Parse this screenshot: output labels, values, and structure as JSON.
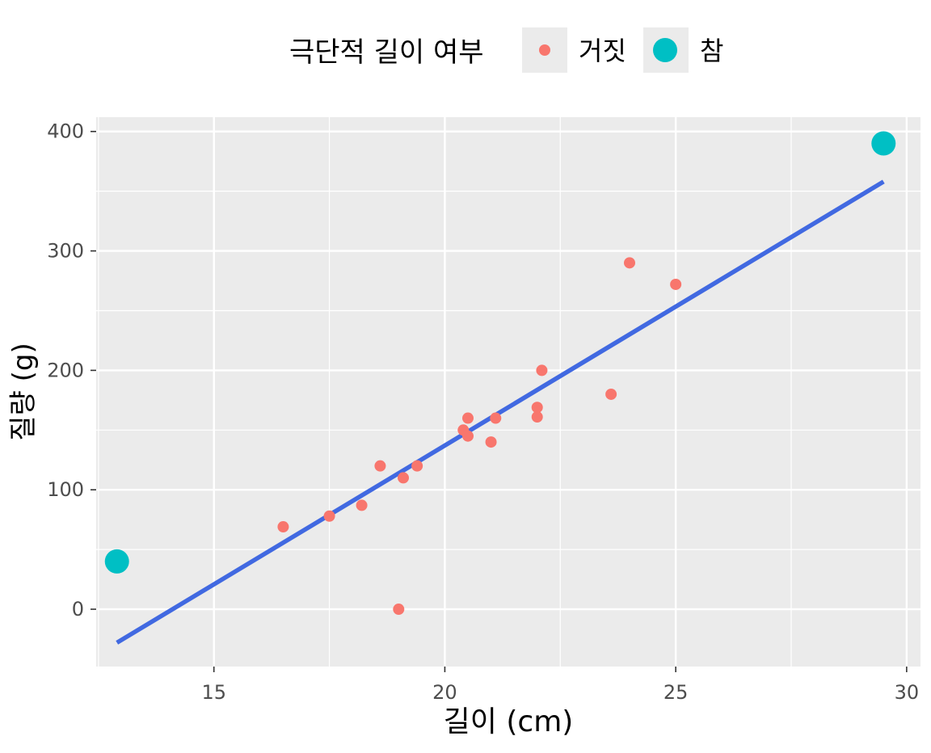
{
  "chart_data": {
    "type": "scatter",
    "xlabel": "길이 (cm)",
    "ylabel": "질량 (g)",
    "xlim": [
      12.45,
      30.3
    ],
    "ylim": [
      -48,
      412
    ],
    "x_ticks": [
      15,
      20,
      25,
      30
    ],
    "y_ticks": [
      0,
      100,
      200,
      300,
      400
    ],
    "grid": true,
    "legend": {
      "title": "극단적 길이 여부",
      "placement": "top",
      "entries": [
        {
          "label": "거짓",
          "color": "#F8766D"
        },
        {
          "label": "참",
          "color": "#00BFC4"
        }
      ]
    },
    "series": [
      {
        "name": "거짓",
        "color": "#F8766D",
        "points": [
          {
            "x": 16.5,
            "y": 69
          },
          {
            "x": 17.5,
            "y": 78
          },
          {
            "x": 18.2,
            "y": 87
          },
          {
            "x": 18.6,
            "y": 120
          },
          {
            "x": 19.0,
            "y": 0
          },
          {
            "x": 19.1,
            "y": 110
          },
          {
            "x": 19.4,
            "y": 120
          },
          {
            "x": 20.4,
            "y": 150
          },
          {
            "x": 20.5,
            "y": 145
          },
          {
            "x": 20.5,
            "y": 160
          },
          {
            "x": 21.0,
            "y": 140
          },
          {
            "x": 21.1,
            "y": 160
          },
          {
            "x": 22.0,
            "y": 169
          },
          {
            "x": 22.0,
            "y": 161
          },
          {
            "x": 22.1,
            "y": 200
          },
          {
            "x": 23.6,
            "y": 180
          },
          {
            "x": 24.0,
            "y": 290
          },
          {
            "x": 25.0,
            "y": 272
          }
        ]
      },
      {
        "name": "참",
        "color": "#00BFC4",
        "points": [
          {
            "x": 12.9,
            "y": 40
          },
          {
            "x": 29.5,
            "y": 390
          }
        ]
      }
    ],
    "fit_line": {
      "color": "#4169E1",
      "x": [
        12.9,
        29.5
      ],
      "y": [
        -28,
        358
      ]
    },
    "colors": {
      "panel_background": "#EBEBEB",
      "grid": "#FFFFFF",
      "axis_text": "#4D4D4D"
    }
  }
}
